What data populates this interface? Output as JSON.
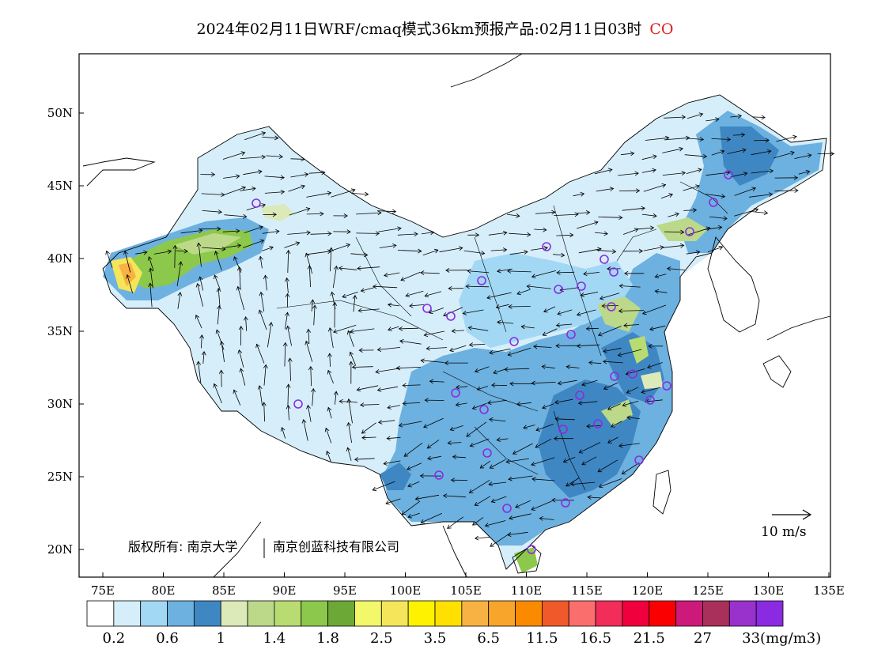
{
  "title": {
    "main": "2024年02月11日WRF/cmaq模式36km预报产品:02月11日03时",
    "species": "CO"
  },
  "map": {
    "x_ticks": [
      "75E",
      "80E",
      "85E",
      "90E",
      "95E",
      "100E",
      "105E",
      "110E",
      "115E",
      "120E",
      "125E",
      "130E",
      "135E"
    ],
    "y_ticks": [
      "50N",
      "45N",
      "40N",
      "35N",
      "30N",
      "25N",
      "20N"
    ]
  },
  "copyright": {
    "left": "版权所有: 南京大学",
    "right": "南京创蓝科技有限公司"
  },
  "wind_scale": {
    "label": "10 m/s"
  },
  "colorbar": {
    "colors": [
      "#ffffff",
      "#d6eefa",
      "#a3d8f5",
      "#6cb1e0",
      "#3f87c3",
      "#dce9b8",
      "#bcd98a",
      "#b8dc72",
      "#8cc84b",
      "#6ca836",
      "#f3f76a",
      "#f4e55a",
      "#fff200",
      "#ffe000",
      "#f7b243",
      "#f8a52b",
      "#fa8a00",
      "#f05a2a",
      "#fa6e6e",
      "#f22d5a",
      "#f0003c",
      "#fa0000",
      "#cd1a7a",
      "#a8305a",
      "#9932cc",
      "#8a2be2"
    ],
    "labels": [
      "0.2",
      "0.6",
      "1",
      "1.4",
      "1.8",
      "2.5",
      "3.5",
      "6.5",
      "11.5",
      "16.5",
      "21.5",
      "27",
      "33(mg/m3)"
    ]
  },
  "stations_count_note": ""
}
